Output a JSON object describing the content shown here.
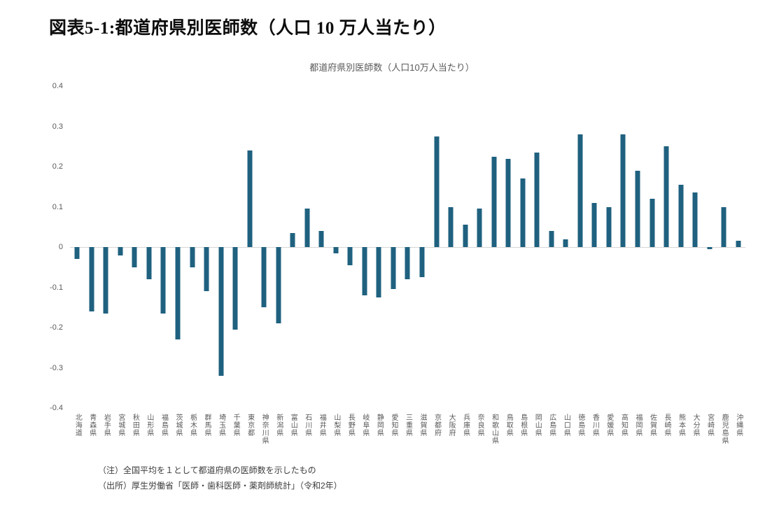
{
  "page": {
    "title": "図表5-1:都道府県別医師数（人口 10 万人当たり）"
  },
  "chart_data": {
    "type": "bar",
    "title": "都道府県別医師数（人口10万人当たり）",
    "categories": [
      "北海道",
      "青森県",
      "岩手県",
      "宮城県",
      "秋田県",
      "山形県",
      "福島県",
      "茨城県",
      "栃木県",
      "群馬県",
      "埼玉県",
      "千葉県",
      "東京都",
      "神奈川県",
      "新潟県",
      "富山県",
      "石川県",
      "福井県",
      "山梨県",
      "長野県",
      "岐阜県",
      "静岡県",
      "愛知県",
      "三重県",
      "滋賀県",
      "京都府",
      "大阪府",
      "兵庫県",
      "奈良県",
      "和歌山県",
      "鳥取県",
      "島根県",
      "岡山県",
      "広島県",
      "山口県",
      "徳島県",
      "香川県",
      "愛媛県",
      "高知県",
      "福岡県",
      "佐賀県",
      "長崎県",
      "熊本県",
      "大分県",
      "宮崎県",
      "鹿児島県",
      "沖縄県"
    ],
    "values": [
      -0.03,
      -0.16,
      -0.165,
      -0.02,
      -0.05,
      -0.08,
      -0.165,
      -0.23,
      -0.05,
      -0.11,
      -0.32,
      -0.205,
      0.24,
      -0.15,
      -0.19,
      0.035,
      0.095,
      0.04,
      -0.015,
      -0.045,
      -0.12,
      -0.125,
      -0.105,
      -0.08,
      -0.075,
      0.275,
      0.1,
      0.055,
      0.095,
      0.225,
      0.22,
      0.17,
      0.235,
      0.04,
      0.02,
      0.28,
      0.11,
      0.1,
      0.28,
      0.19,
      0.12,
      0.25,
      0.155,
      0.135,
      -0.005,
      0.1,
      0.015
    ],
    "xlabel": "",
    "ylabel": "",
    "ylim": [
      -0.4,
      0.4
    ],
    "yticks": [
      0.4,
      0.3,
      0.2,
      0.1,
      0,
      -0.1,
      -0.2,
      -0.3,
      -0.4
    ],
    "bar_color": "#1f617f",
    "grid": false,
    "legend": "none"
  },
  "notes": {
    "note1": "（注）全国平均を１として都道府県の医師数を示したもの",
    "note2": "（出所）厚生労働省「医師・歯科医師・薬剤師統計」（令和2年）"
  }
}
